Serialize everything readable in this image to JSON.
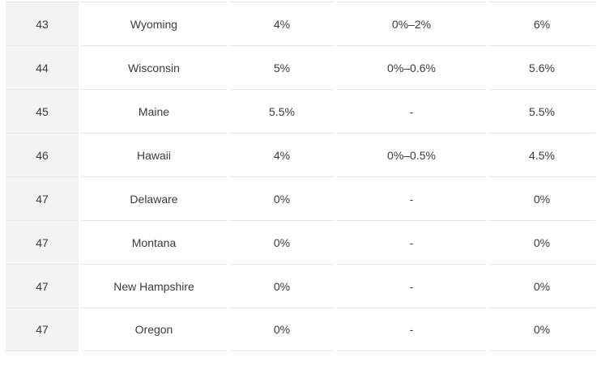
{
  "colors": {
    "background": "#ffffff",
    "rank_column_bg": "#f3f3f4",
    "row_border": "#e7e7e7",
    "text": "#3b3b3b"
  },
  "table": {
    "rows": [
      {
        "rank": "43",
        "state": "Wyoming",
        "state_rate": "4%",
        "local_rate": "0%–2%",
        "combined": "6%"
      },
      {
        "rank": "44",
        "state": "Wisconsin",
        "state_rate": "5%",
        "local_rate": "0%–0.6%",
        "combined": "5.6%"
      },
      {
        "rank": "45",
        "state": "Maine",
        "state_rate": "5.5%",
        "local_rate": "-",
        "combined": "5.5%"
      },
      {
        "rank": "46",
        "state": "Hawaii",
        "state_rate": "4%",
        "local_rate": "0%–0.5%",
        "combined": "4.5%"
      },
      {
        "rank": "47",
        "state": "Delaware",
        "state_rate": "0%",
        "local_rate": "-",
        "combined": "0%"
      },
      {
        "rank": "47",
        "state": "Montana",
        "state_rate": "0%",
        "local_rate": "-",
        "combined": "0%"
      },
      {
        "rank": "47",
        "state": "New Hampshire",
        "state_rate": "0%",
        "local_rate": "-",
        "combined": "0%"
      },
      {
        "rank": "47",
        "state": "Oregon",
        "state_rate": "0%",
        "local_rate": "-",
        "combined": "0%"
      }
    ]
  }
}
